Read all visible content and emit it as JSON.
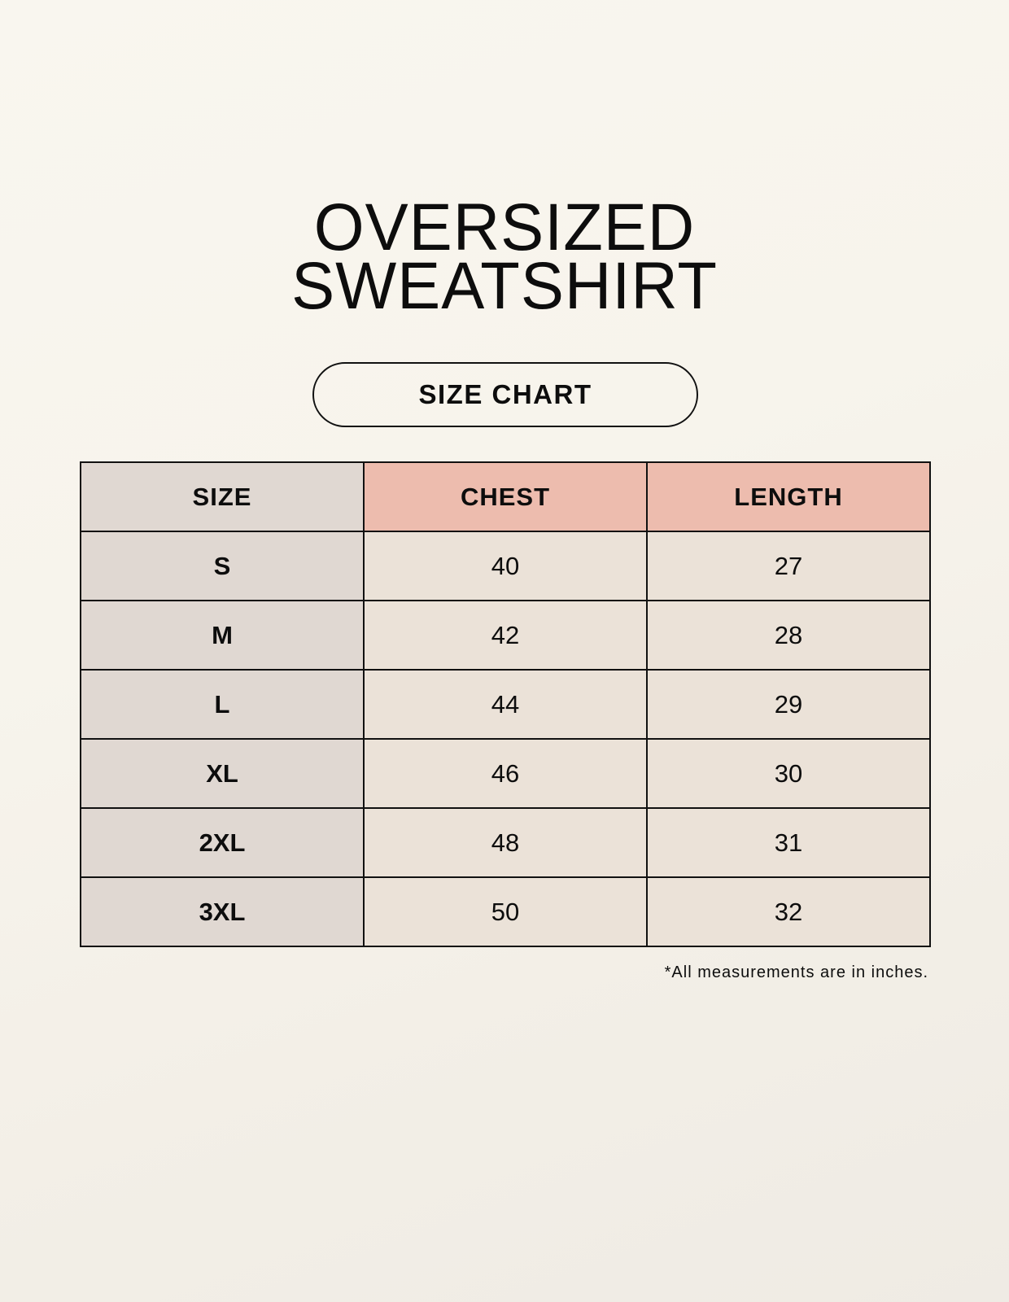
{
  "title_line1": "OVERSIZED",
  "title_line2": "SWEATSHIRT",
  "subtitle": "SIZE CHART",
  "table": {
    "headers": [
      "SIZE",
      "CHEST",
      "LENGTH"
    ],
    "rows": [
      [
        "S",
        "40",
        "27"
      ],
      [
        "M",
        "42",
        "28"
      ],
      [
        "L",
        "44",
        "29"
      ],
      [
        "XL",
        "46",
        "30"
      ],
      [
        "2XL",
        "48",
        "31"
      ],
      [
        "3XL",
        "50",
        "32"
      ]
    ]
  },
  "note": "*All measurements are in inches.",
  "colors": {
    "size_column": "#e0d8d2",
    "header_accent": "#edbcae",
    "value_cells": "#ebe2d8"
  }
}
